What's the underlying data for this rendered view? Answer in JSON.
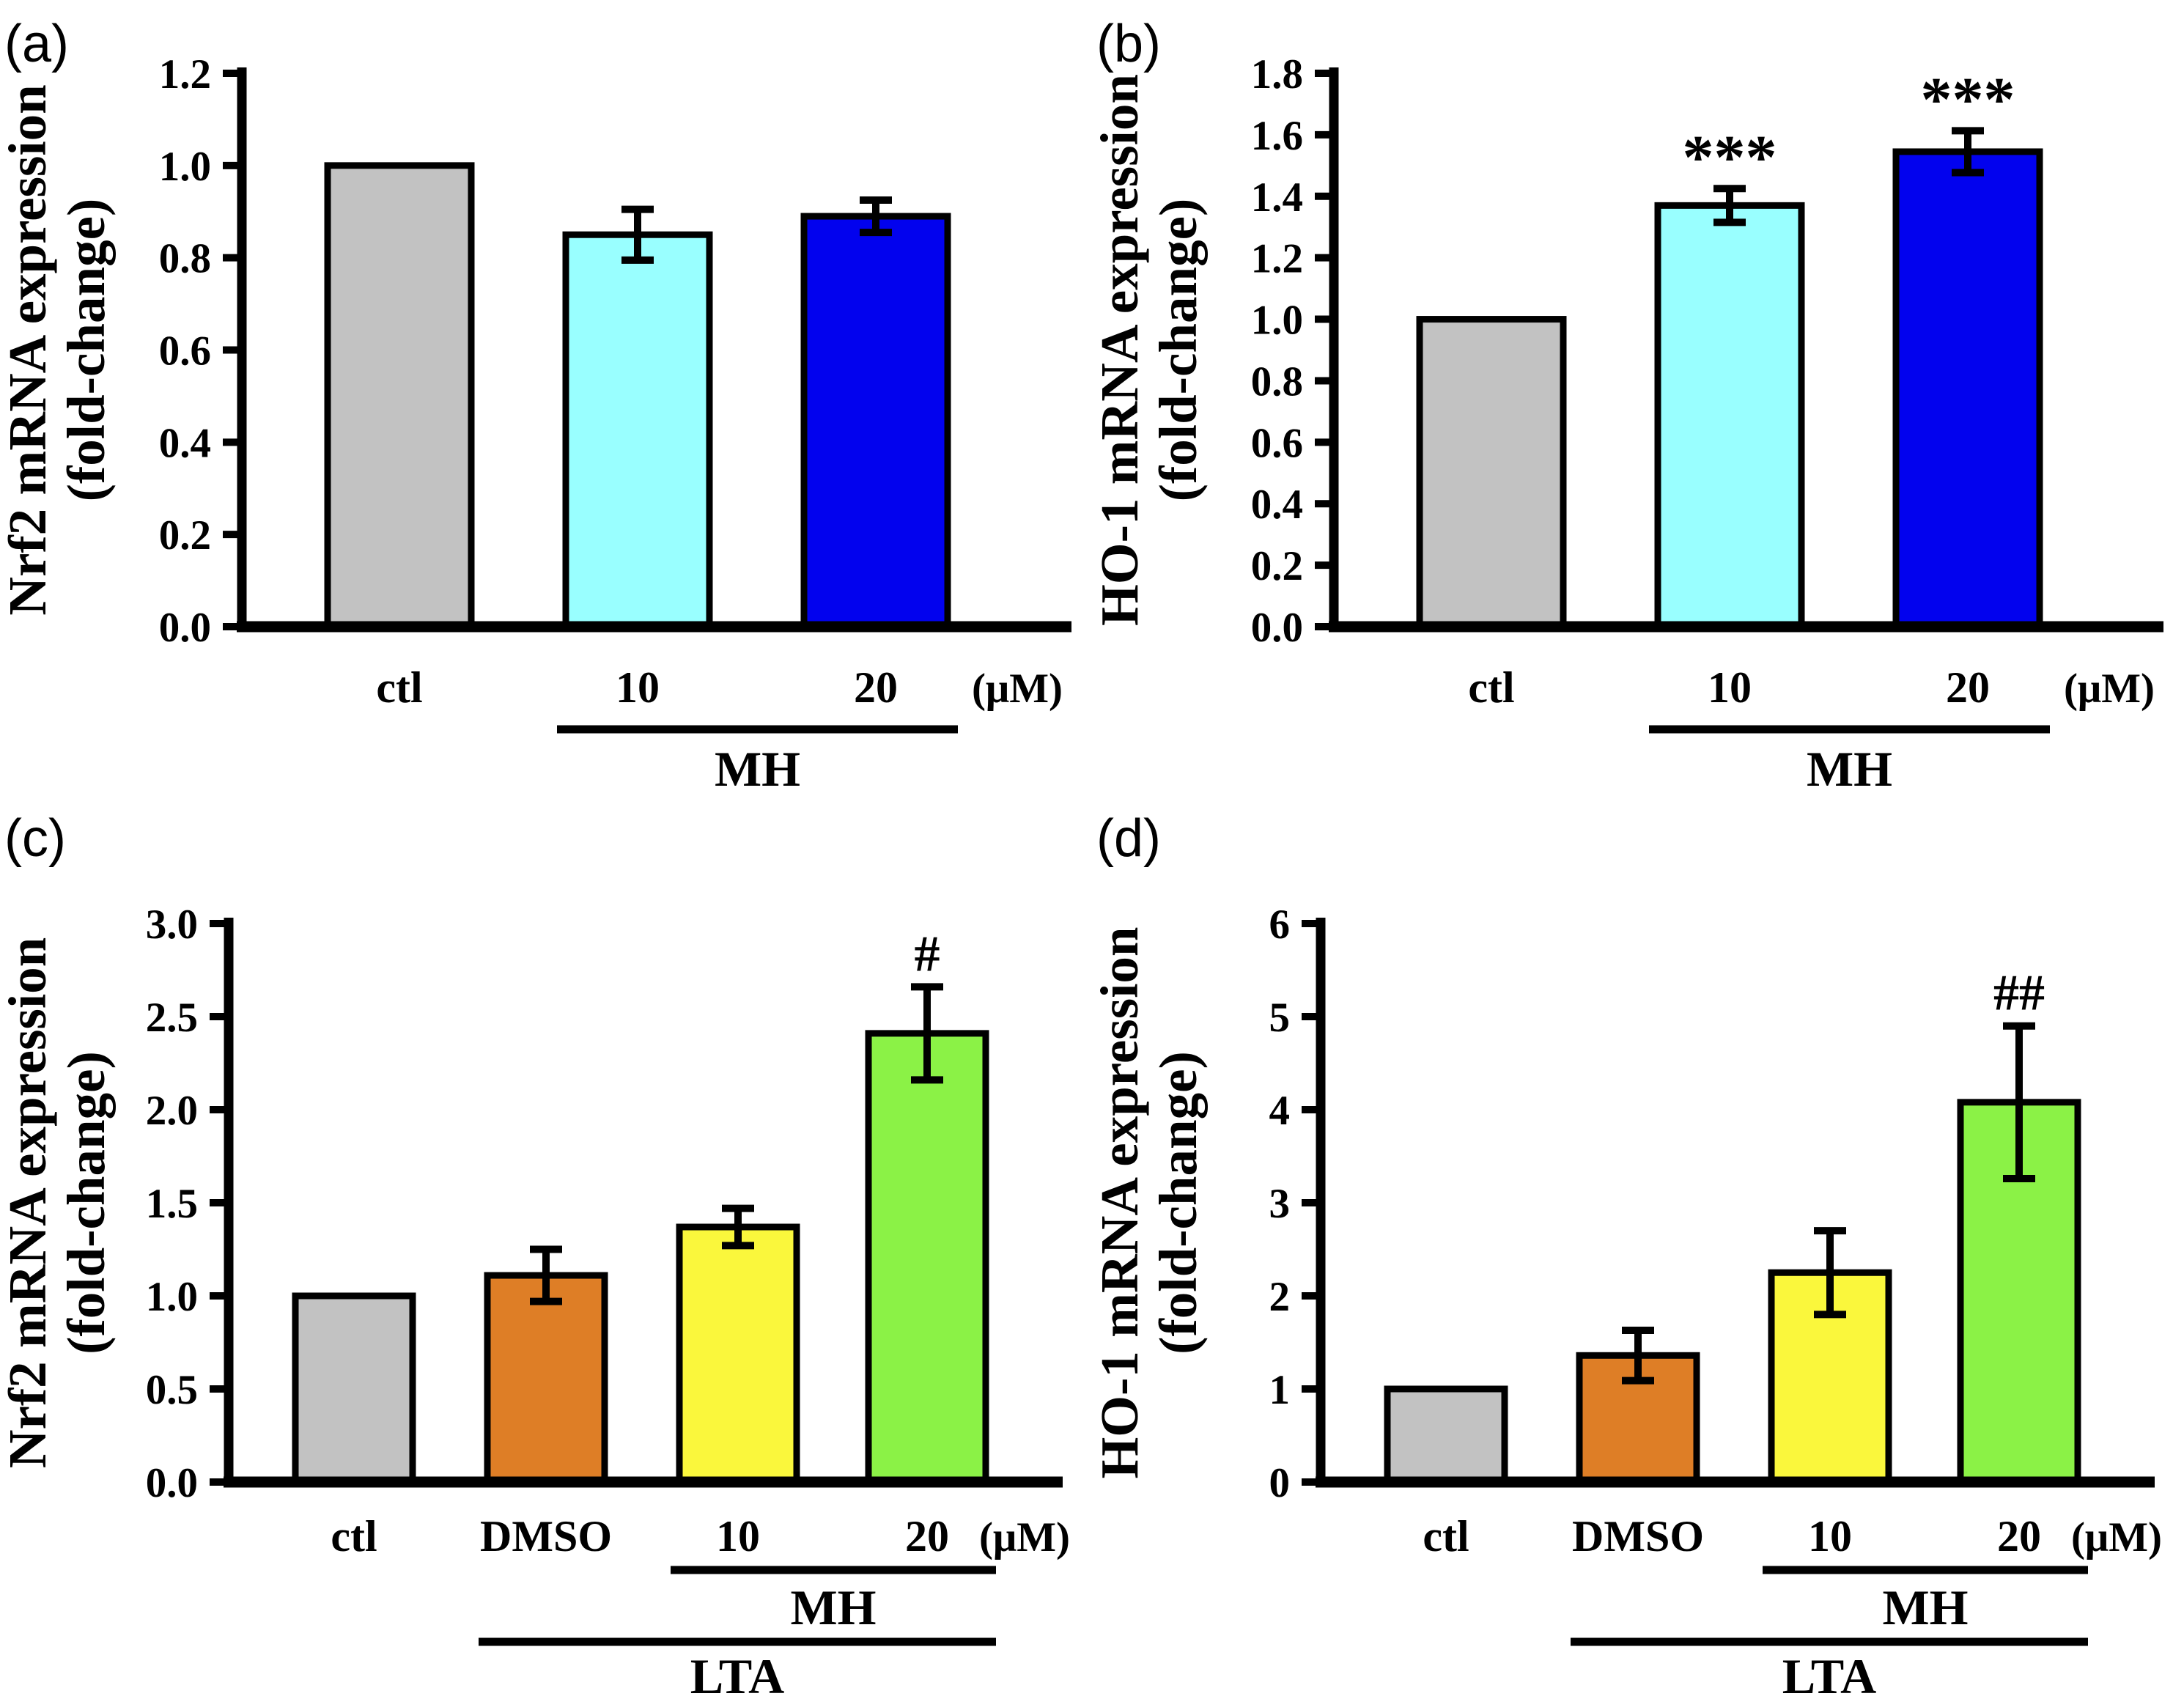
{
  "figure": {
    "background": "#FFFFFF",
    "text_color": "#000000",
    "panel_label_color": "#1C1C1C"
  },
  "chart_data": [
    {
      "panel_label": "(a)",
      "type": "bar",
      "title": "",
      "ylabel": "Nrf2 mRNA expression (fold-change)",
      "ylabel_lines": [
        "Nrf2 mRNA expression",
        "(fold-change)"
      ],
      "ylim": [
        0,
        1.2
      ],
      "ytick_step": 0.2,
      "ytick_decimals": 1,
      "grid": false,
      "legend": null,
      "categories": [
        "ctl",
        "10",
        "20"
      ],
      "values": [
        1.0,
        0.85,
        0.89
      ],
      "errors": [
        0,
        0.055,
        0.035
      ],
      "significance": [
        "",
        "",
        ""
      ],
      "bar_colors": [
        "#C2C2C2",
        "#99FFFF",
        "#0202EE"
      ],
      "unit_label": "(μM)",
      "group_lines": [
        {
          "label": "MH",
          "start": 1,
          "end": 2
        }
      ]
    },
    {
      "panel_label": "(b)",
      "type": "bar",
      "title": "",
      "ylabel": "HO-1 mRNA expression (fold-change)",
      "ylabel_lines": [
        "HO-1 mRNA expression",
        "(fold-change)"
      ],
      "ylim": [
        0,
        1.8
      ],
      "ytick_step": 0.2,
      "ytick_decimals": 1,
      "grid": false,
      "legend": null,
      "categories": [
        "ctl",
        "10",
        "20"
      ],
      "values": [
        1.0,
        1.37,
        1.545
      ],
      "errors": [
        0,
        0.055,
        0.068
      ],
      "significance": [
        "",
        "***",
        "***"
      ],
      "bar_colors": [
        "#C2C2C2",
        "#99FFFF",
        "#0202EE"
      ],
      "unit_label": "(μM)",
      "group_lines": [
        {
          "label": "MH",
          "start": 1,
          "end": 2
        }
      ]
    },
    {
      "panel_label": "(c)",
      "type": "bar",
      "title": "",
      "ylabel": "Nrf2 mRNA expression (fold-change)",
      "ylabel_lines": [
        "Nrf2 mRNA expression",
        "(fold-change)"
      ],
      "ylim": [
        0,
        3.0
      ],
      "ytick_step": 0.5,
      "ytick_decimals": 1,
      "grid": false,
      "legend": null,
      "categories": [
        "ctl",
        "DMSO",
        "10",
        "20"
      ],
      "values": [
        1.0,
        1.11,
        1.37,
        2.41
      ],
      "errors": [
        0,
        0.14,
        0.1,
        0.25
      ],
      "significance": [
        "",
        "",
        "",
        "#"
      ],
      "bar_colors": [
        "#C2C2C2",
        "#DE7E26",
        "#FAF73C",
        "#8BF246"
      ],
      "unit_label": "(μM)",
      "group_lines": [
        {
          "label": "MH",
          "start": 2,
          "end": 3
        },
        {
          "label": "LTA",
          "start": 1,
          "end": 3
        }
      ]
    },
    {
      "panel_label": "(d)",
      "type": "bar",
      "title": "",
      "ylabel": "HO-1 mRNA expression (fold-change)",
      "ylabel_lines": [
        "HO-1 mRNA expression",
        "(fold-change)"
      ],
      "ylim": [
        0,
        6
      ],
      "ytick_step": 1,
      "ytick_decimals": 0,
      "grid": false,
      "legend": null,
      "categories": [
        "ctl",
        "DMSO",
        "10",
        "20"
      ],
      "values": [
        1.0,
        1.36,
        2.25,
        4.08
      ],
      "errors": [
        0,
        0.27,
        0.45,
        0.82
      ],
      "significance": [
        "",
        "",
        "",
        "##"
      ],
      "bar_colors": [
        "#C2C2C2",
        "#DE7E26",
        "#FAF73C",
        "#8BF246"
      ],
      "unit_label": "(μM)",
      "group_lines": [
        {
          "label": "MH",
          "start": 2,
          "end": 3
        },
        {
          "label": "LTA",
          "start": 1,
          "end": 3
        }
      ]
    }
  ]
}
